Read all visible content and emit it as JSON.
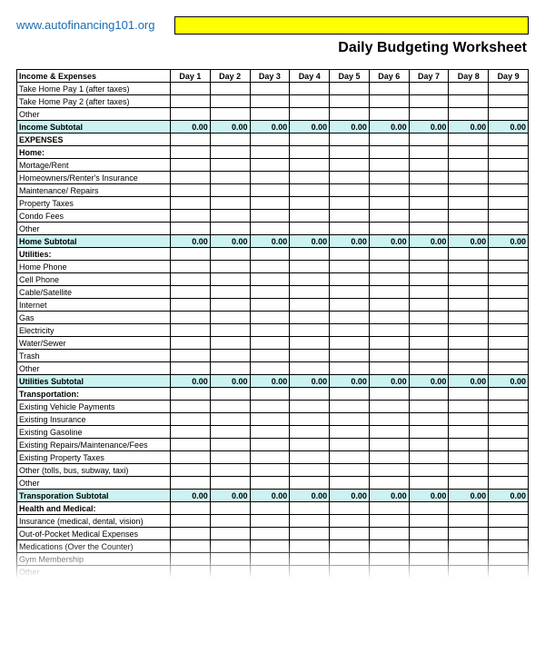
{
  "header": {
    "url": "www.autofinancing101.org",
    "title": "Daily Budgeting Worksheet"
  },
  "colors": {
    "highlight": "#ffff00",
    "subtotal_bg": "#ccf2f2",
    "link": "#1a6db5",
    "border": "#000000"
  },
  "columns": {
    "label": "Income & Expenses",
    "days": [
      "Day 1",
      "Day 2",
      "Day 3",
      "Day 4",
      "Day 5",
      "Day 6",
      "Day 7",
      "Day 8",
      "Day 9"
    ]
  },
  "rows": [
    {
      "type": "item",
      "label": "Take Home Pay 1 (after taxes)"
    },
    {
      "type": "item",
      "label": "Take Home Pay 2 (after taxes)"
    },
    {
      "type": "item",
      "label": "Other"
    },
    {
      "type": "subtotal",
      "label": "Income Subtotal",
      "values": [
        "0.00",
        "0.00",
        "0.00",
        "0.00",
        "0.00",
        "0.00",
        "0.00",
        "0.00",
        "0.00"
      ]
    },
    {
      "type": "section",
      "label": "EXPENSES"
    },
    {
      "type": "section",
      "label": "Home:"
    },
    {
      "type": "item",
      "label": "Mortage/Rent"
    },
    {
      "type": "item",
      "label": "Homeowners/Renter's Insurance"
    },
    {
      "type": "item",
      "label": "Maintenance/ Repairs"
    },
    {
      "type": "item",
      "label": "Property Taxes"
    },
    {
      "type": "item",
      "label": "Condo Fees"
    },
    {
      "type": "item",
      "label": "Other"
    },
    {
      "type": "subtotal",
      "label": " Home Subtotal",
      "values": [
        "0.00",
        "0.00",
        "0.00",
        "0.00",
        "0.00",
        "0.00",
        "0.00",
        "0.00",
        "0.00"
      ]
    },
    {
      "type": "section",
      "label": "Utilities:"
    },
    {
      "type": "item",
      "label": "Home Phone"
    },
    {
      "type": "item",
      "label": "Cell Phone"
    },
    {
      "type": "item",
      "label": "Cable/Satellite"
    },
    {
      "type": "item",
      "label": "Internet"
    },
    {
      "type": "item",
      "label": "Gas"
    },
    {
      "type": "item",
      "label": "Electricity"
    },
    {
      "type": "item",
      "label": "Water/Sewer"
    },
    {
      "type": "item",
      "label": "Trash"
    },
    {
      "type": "item",
      "label": "Other"
    },
    {
      "type": "subtotal",
      "label": "Utilities Subtotal",
      "values": [
        "0.00",
        "0.00",
        "0.00",
        "0.00",
        "0.00",
        "0.00",
        "0.00",
        "0.00",
        "0.00"
      ]
    },
    {
      "type": "section",
      "label": "Transportation:"
    },
    {
      "type": "item",
      "label": "Existing Vehicle Payments"
    },
    {
      "type": "item",
      "label": "Existing Insurance"
    },
    {
      "type": "item",
      "label": "Existing Gasoline"
    },
    {
      "type": "item",
      "label": "Existing Repairs/Maintenance/Fees"
    },
    {
      "type": "item",
      "label": "Existing Property Taxes"
    },
    {
      "type": "item",
      "label": "Other (tolls, bus, subway, taxi)"
    },
    {
      "type": "item",
      "label": "Other"
    },
    {
      "type": "subtotal",
      "label": "Transporation Subtotal",
      "values": [
        "0.00",
        "0.00",
        "0.00",
        "0.00",
        "0.00",
        "0.00",
        "0.00",
        "0.00",
        "0.00"
      ]
    },
    {
      "type": "section",
      "label": "Health and Medical:"
    },
    {
      "type": "item",
      "label": "Insurance (medical, dental, vision)"
    },
    {
      "type": "item",
      "label": "Out-of-Pocket Medical Expenses"
    },
    {
      "type": "item",
      "label": "Medications (Over the Counter)"
    },
    {
      "type": "item",
      "label": "Gym Membership"
    },
    {
      "type": "item",
      "label": "Other"
    }
  ]
}
